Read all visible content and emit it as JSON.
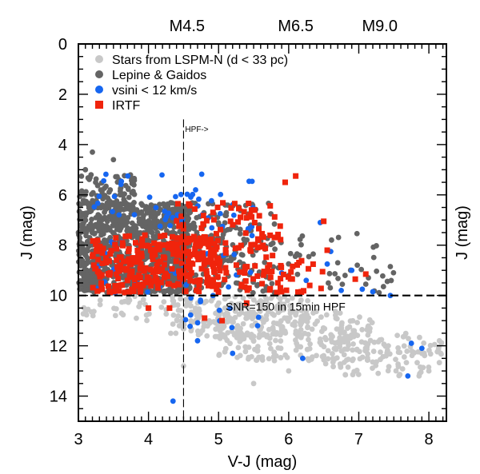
{
  "chart_data": {
    "type": "scatter",
    "xlabel": "V-J (mag)",
    "ylabel": "J (mag)",
    "xlim": [
      3.0,
      8.25
    ],
    "ylim": [
      15.0,
      0.0
    ],
    "y_inverted": true,
    "x_ticks": [
      3,
      4,
      5,
      6,
      7,
      8
    ],
    "y_ticks": [
      0,
      2,
      4,
      6,
      8,
      10,
      12,
      14
    ],
    "top_axis_labels": [
      {
        "x": 4.55,
        "label": "M4.5"
      },
      {
        "x": 6.1,
        "label": "M6.5"
      },
      {
        "x": 7.3,
        "label": "M9.0"
      }
    ],
    "right_axis_label": "J (mag)",
    "legend_position": "top-left",
    "grid": false,
    "annotations": {
      "hpf_arrow": "HPF->",
      "snr_label": "SNR=150 in 15min HPF"
    },
    "reference_lines": {
      "vertical_x": 4.5,
      "horizontal_y": 10
    },
    "series": [
      {
        "name": "Stars from LSPM-N (d < 33 pc)",
        "color": "#c8c8c8",
        "marker": "circle",
        "clusters": [
          {
            "x": [
              4.3,
              6.3
            ],
            "y": [
              10.0,
              11.7
            ],
            "n": 200
          },
          {
            "x": [
              5.0,
              7.2
            ],
            "y": [
              10.6,
              12.6
            ],
            "n": 220
          },
          {
            "x": [
              6.5,
              8.2
            ],
            "y": [
              11.5,
              13.2
            ],
            "n": 110
          },
          {
            "x": [
              3.0,
              4.5
            ],
            "y": [
              10.0,
              11.0
            ],
            "n": 40
          }
        ],
        "points": [
          {
            "x": 4.5,
            "y": 12.8
          },
          {
            "x": 5.5,
            "y": 13.5
          },
          {
            "x": 6.0,
            "y": 13.0
          },
          {
            "x": 8.15,
            "y": 11.8
          },
          {
            "x": 7.9,
            "y": 12.3
          },
          {
            "x": 8.0,
            "y": 13.0
          }
        ]
      },
      {
        "name": "Lepine & Gaidos",
        "color": "#646464",
        "marker": "circle",
        "clusters": [
          {
            "x": [
              3.0,
              4.6
            ],
            "y": [
              6.3,
              9.9
            ],
            "n": 1000
          },
          {
            "x": [
              3.0,
              3.8
            ],
            "y": [
              5.2,
              6.5
            ],
            "n": 80
          },
          {
            "x": [
              4.0,
              5.8
            ],
            "y": [
              6.3,
              9.9
            ],
            "n": 220
          },
          {
            "x": [
              5.5,
              7.5
            ],
            "y": [
              7.5,
              9.9
            ],
            "n": 40
          }
        ],
        "points": [
          {
            "x": 3.2,
            "y": 4.3
          },
          {
            "x": 3.5,
            "y": 4.6
          },
          {
            "x": 3.1,
            "y": 5.0
          },
          {
            "x": 6.7,
            "y": 8.7
          },
          {
            "x": 7.45,
            "y": 8.85
          },
          {
            "x": 6.35,
            "y": 8.35
          },
          {
            "x": 6.0,
            "y": 9.2
          },
          {
            "x": 7.1,
            "y": 9.55
          }
        ]
      },
      {
        "name": "vsini < 12 km/s",
        "color": "#1666f0",
        "marker": "circle",
        "clusters": [
          {
            "x": [
              3.2,
              5.5
            ],
            "y": [
              5.1,
              9.9
            ],
            "n": 80
          },
          {
            "x": [
              4.4,
              5.6
            ],
            "y": [
              10.0,
              11.3
            ],
            "n": 14
          }
        ],
        "points": [
          {
            "x": 6.45,
            "y": 7.1
          },
          {
            "x": 6.6,
            "y": 8.25
          },
          {
            "x": 6.55,
            "y": 8.75
          },
          {
            "x": 6.9,
            "y": 9.0
          },
          {
            "x": 7.05,
            "y": 9.75
          },
          {
            "x": 7.2,
            "y": 9.85
          },
          {
            "x": 7.45,
            "y": 10.0
          },
          {
            "x": 7.75,
            "y": 11.9
          },
          {
            "x": 7.9,
            "y": 12.1
          },
          {
            "x": 7.7,
            "y": 13.2
          },
          {
            "x": 6.2,
            "y": 12.5
          },
          {
            "x": 5.2,
            "y": 12.3
          },
          {
            "x": 4.7,
            "y": 11.8
          },
          {
            "x": 4.35,
            "y": 14.2
          },
          {
            "x": 6.25,
            "y": 9.4
          },
          {
            "x": 5.9,
            "y": 9.1
          },
          {
            "x": 6.75,
            "y": 9.8
          }
        ]
      },
      {
        "name": "IRTF",
        "color": "#f0240c",
        "marker": "square",
        "clusters": [
          {
            "x": [
              3.2,
              5.0
            ],
            "y": [
              7.6,
              9.9
            ],
            "n": 260
          },
          {
            "x": [
              4.4,
              5.9
            ],
            "y": [
              6.3,
              9.9
            ],
            "n": 130
          },
          {
            "x": [
              5.3,
              6.5
            ],
            "y": [
              8.6,
              9.9
            ],
            "n": 30
          }
        ],
        "points": [
          {
            "x": 6.1,
            "y": 5.25
          },
          {
            "x": 5.95,
            "y": 5.5
          },
          {
            "x": 6.5,
            "y": 7.05
          },
          {
            "x": 6.55,
            "y": 8.2
          },
          {
            "x": 7.1,
            "y": 9.15
          },
          {
            "x": 6.95,
            "y": 9.35
          },
          {
            "x": 4.3,
            "y": 10.5
          },
          {
            "x": 4.8,
            "y": 10.9
          },
          {
            "x": 5.05,
            "y": 11.0
          },
          {
            "x": 4.0,
            "y": 10.5
          },
          {
            "x": 5.4,
            "y": 10.3
          },
          {
            "x": 6.3,
            "y": 9.6
          }
        ]
      }
    ]
  }
}
